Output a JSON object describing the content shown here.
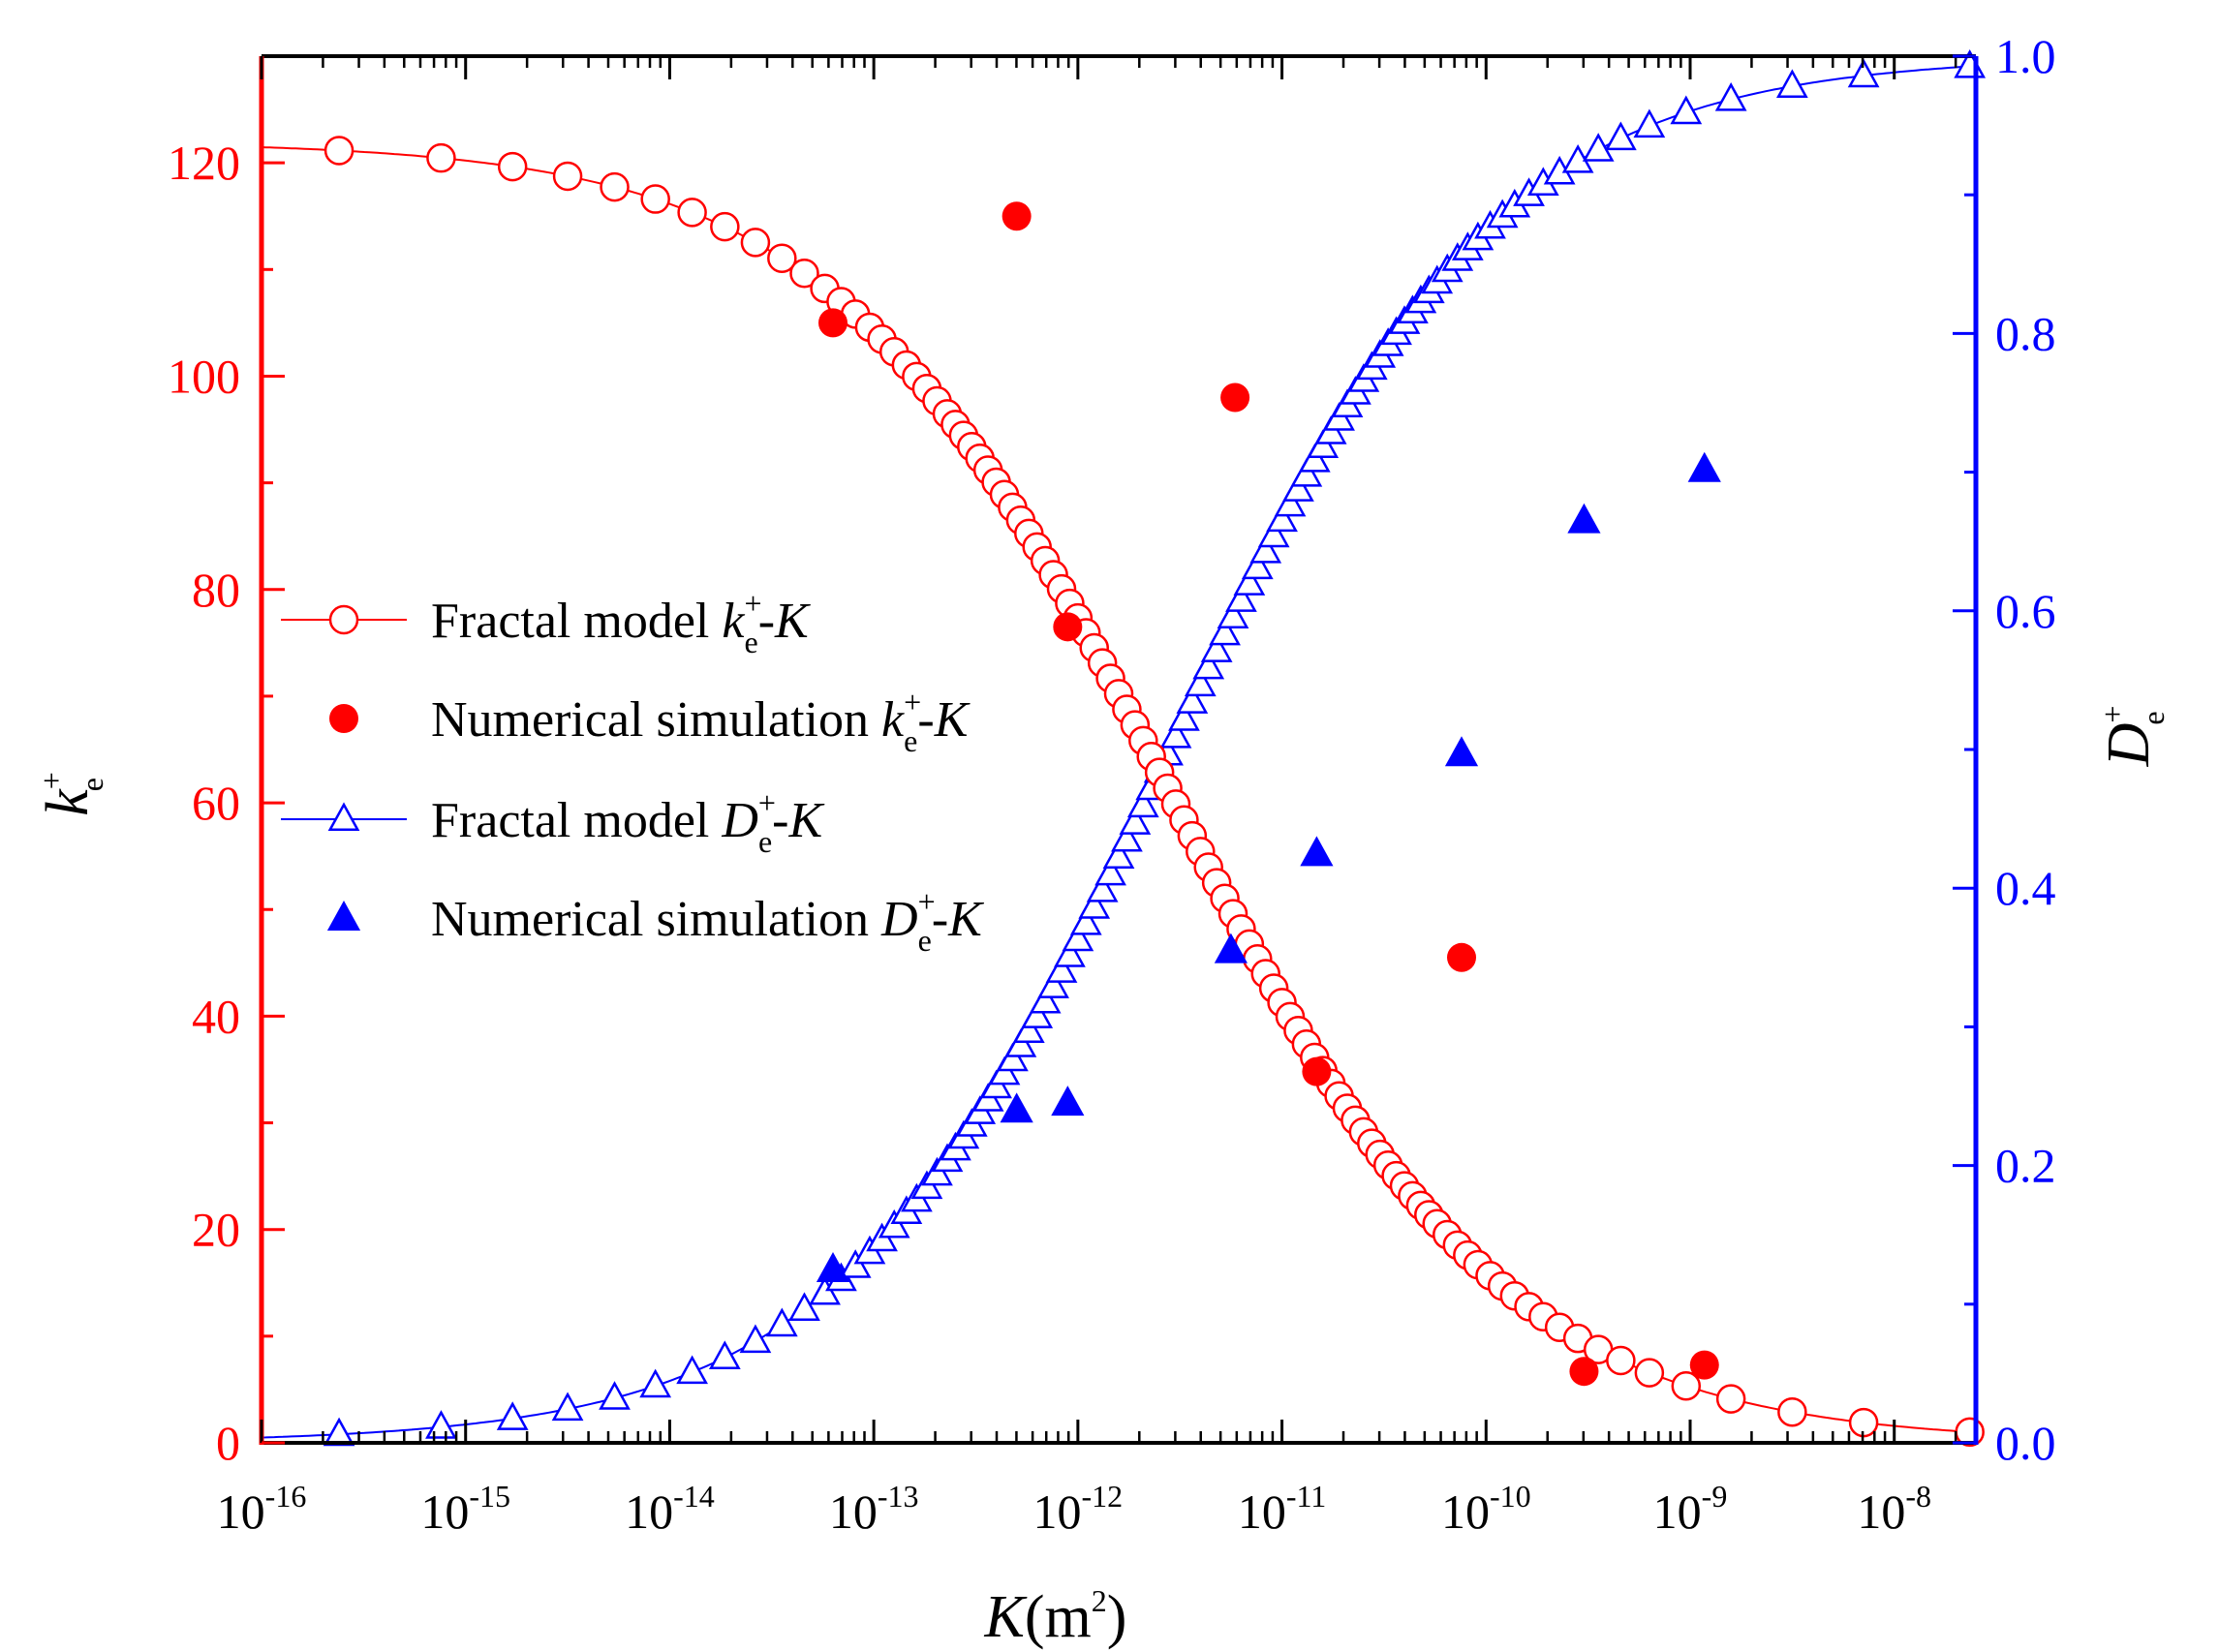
{
  "chart_data": {
    "type": "scatter",
    "title": "",
    "x_axis": {
      "label": {
        "main": "K",
        "unit": "(m",
        "unit_sup": "2",
        "close": ")"
      },
      "scale": "log",
      "range_exp": [
        -16,
        -7.6
      ],
      "ticks": [
        {
          "base": "10",
          "exp": "-16",
          "value_exp": -16
        },
        {
          "base": "10",
          "exp": "-15",
          "value_exp": -15
        },
        {
          "base": "10",
          "exp": "-14",
          "value_exp": -14
        },
        {
          "base": "10",
          "exp": "-13",
          "value_exp": -13
        },
        {
          "base": "10",
          "exp": "-12",
          "value_exp": -12
        },
        {
          "base": "10",
          "exp": "-11",
          "value_exp": -11
        },
        {
          "base": "10",
          "exp": "-10",
          "value_exp": -10
        },
        {
          "base": "10",
          "exp": "-9",
          "value_exp": -9
        },
        {
          "base": "10",
          "exp": "-8",
          "value_exp": -8
        }
      ]
    },
    "y_left": {
      "label": {
        "main": "k",
        "sup": "+",
        "sub": "e"
      },
      "range": [
        0,
        130
      ],
      "ticks": [
        "0",
        "20",
        "40",
        "60",
        "80",
        "100",
        "120"
      ],
      "tick_values": [
        0,
        20,
        40,
        60,
        80,
        100,
        120
      ],
      "color": "#ff0000"
    },
    "y_right": {
      "label": {
        "main": "D",
        "sup": "+",
        "sub": "e"
      },
      "range": [
        0,
        1.0
      ],
      "ticks": [
        "0.0",
        "0.2",
        "0.4",
        "0.6",
        "0.8",
        "1.0"
      ],
      "tick_values": [
        0,
        0.2,
        0.4,
        0.6,
        0.8,
        1.0
      ],
      "color": "#0000ff"
    },
    "series": [
      {
        "name": "Fractal model ke+-K",
        "legend": {
          "prefix": "Fractal model ",
          "v": "k",
          "sup": "+",
          "sub": "e",
          "dash": "-",
          "k": "K"
        },
        "axis": "left",
        "style": "line-open-circle",
        "color": "#ff0000",
        "logistic": {
          "top": 122,
          "mid_exp": -11.55,
          "scale": 0.82
        },
        "marker_log_x": [
          -15.62,
          -15.12,
          -14.77,
          -14.5,
          -14.27,
          -14.07,
          -13.89,
          -13.73,
          -13.58,
          -13.45,
          -13.34,
          -13.24,
          -13.16,
          -13.09,
          -13.02,
          -12.96,
          -12.9,
          -12.84,
          -12.79,
          -12.74,
          -12.69,
          -12.64,
          -12.6,
          -12.56,
          -12.52,
          -12.48,
          -12.44,
          -12.4,
          -12.36,
          -12.32,
          -12.28,
          -12.24,
          -12.2,
          -12.16,
          -12.12,
          -12.08,
          -12.04,
          -12.0,
          -11.96,
          -11.92,
          -11.88,
          -11.84,
          -11.8,
          -11.76,
          -11.72,
          -11.68,
          -11.64,
          -11.6,
          -11.56,
          -11.52,
          -11.48,
          -11.44,
          -11.4,
          -11.36,
          -11.32,
          -11.28,
          -11.24,
          -11.2,
          -11.16,
          -11.12,
          -11.08,
          -11.04,
          -11.0,
          -10.96,
          -10.92,
          -10.88,
          -10.84,
          -10.8,
          -10.76,
          -10.72,
          -10.68,
          -10.64,
          -10.6,
          -10.56,
          -10.52,
          -10.48,
          -10.44,
          -10.4,
          -10.36,
          -10.32,
          -10.28,
          -10.24,
          -10.19,
          -10.14,
          -10.09,
          -10.04,
          -9.98,
          -9.92,
          -9.86,
          -9.79,
          -9.72,
          -9.64,
          -9.55,
          -9.45,
          -9.34,
          -9.2,
          -9.02,
          -8.8,
          -8.5,
          -8.15,
          -7.63
        ]
      },
      {
        "name": "Numerical simulation ke+-K",
        "legend": {
          "prefix": "Numerical simulation ",
          "v": "k",
          "sup": "+",
          "sub": "e",
          "dash": "-",
          "k": "K"
        },
        "axis": "left",
        "style": "filled-circle",
        "color": "#ff0000",
        "points": [
          {
            "log_x": -13.2,
            "y": 105
          },
          {
            "log_x": -12.3,
            "y": 115
          },
          {
            "log_x": -12.05,
            "y": 76.5
          },
          {
            "log_x": -11.23,
            "y": 98
          },
          {
            "log_x": -10.83,
            "y": 34.8
          },
          {
            "log_x": -10.12,
            "y": 45.5
          },
          {
            "log_x": -9.52,
            "y": 6.7
          },
          {
            "log_x": -8.93,
            "y": 7.3
          }
        ]
      },
      {
        "name": "Fractal model De+-K",
        "legend": {
          "prefix": "Fractal model ",
          "v": "D",
          "sup": "+",
          "sub": "e",
          "dash": "-",
          "k": "K"
        },
        "axis": "right",
        "style": "line-open-triangle",
        "color": "#0000ff",
        "logistic": {
          "top": 1.0,
          "mid_exp": -11.55,
          "scale": 0.8
        }
      },
      {
        "name": "Numerical simulation De+-K",
        "legend": {
          "prefix": "Numerical simulation ",
          "v": "D",
          "sup": "+",
          "sub": "e",
          "dash": "-",
          "k": "K"
        },
        "axis": "right",
        "style": "filled-triangle",
        "color": "#0000ff",
        "points": [
          {
            "log_x": -13.2,
            "y": 0.125
          },
          {
            "log_x": -12.3,
            "y": 0.24
          },
          {
            "log_x": -12.05,
            "y": 0.245
          },
          {
            "log_x": -11.25,
            "y": 0.355
          },
          {
            "log_x": -10.83,
            "y": 0.425
          },
          {
            "log_x": -10.12,
            "y": 0.497
          },
          {
            "log_x": -9.52,
            "y": 0.665
          },
          {
            "log_x": -8.93,
            "y": 0.702
          }
        ]
      }
    ]
  }
}
